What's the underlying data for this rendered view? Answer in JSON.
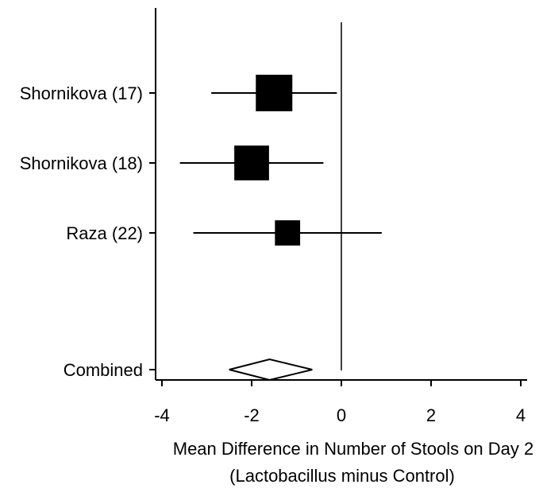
{
  "chart_data": {
    "type": "forest",
    "title": "",
    "xlabel": "Mean Difference in Number of Stools on Day 2",
    "xlabel_sub": "(Lactobacillus minus Control)",
    "ylabel": "",
    "xlim": [
      -4.1,
      4.1
    ],
    "x_ticks": [
      -4,
      -2,
      0,
      2,
      4
    ],
    "x_tick_labels": [
      "-4",
      "-2",
      "0",
      "2",
      "4"
    ],
    "reference_line": 0,
    "grid": false,
    "studies": [
      {
        "label": "Shornikova (17)",
        "estimate": -1.5,
        "ci_low": -2.9,
        "ci_high": -0.1,
        "weight": 0.42
      },
      {
        "label": "Shornikova (18)",
        "estimate": -2.0,
        "ci_low": -3.6,
        "ci_high": -0.4,
        "weight": 0.38
      },
      {
        "label": "Raza (22)",
        "estimate": -1.2,
        "ci_low": -3.3,
        "ci_high": 0.9,
        "weight": 0.2
      }
    ],
    "combined": {
      "label": "Combined",
      "estimate": -1.6,
      "ci_low": -2.5,
      "ci_high": -0.65
    }
  }
}
